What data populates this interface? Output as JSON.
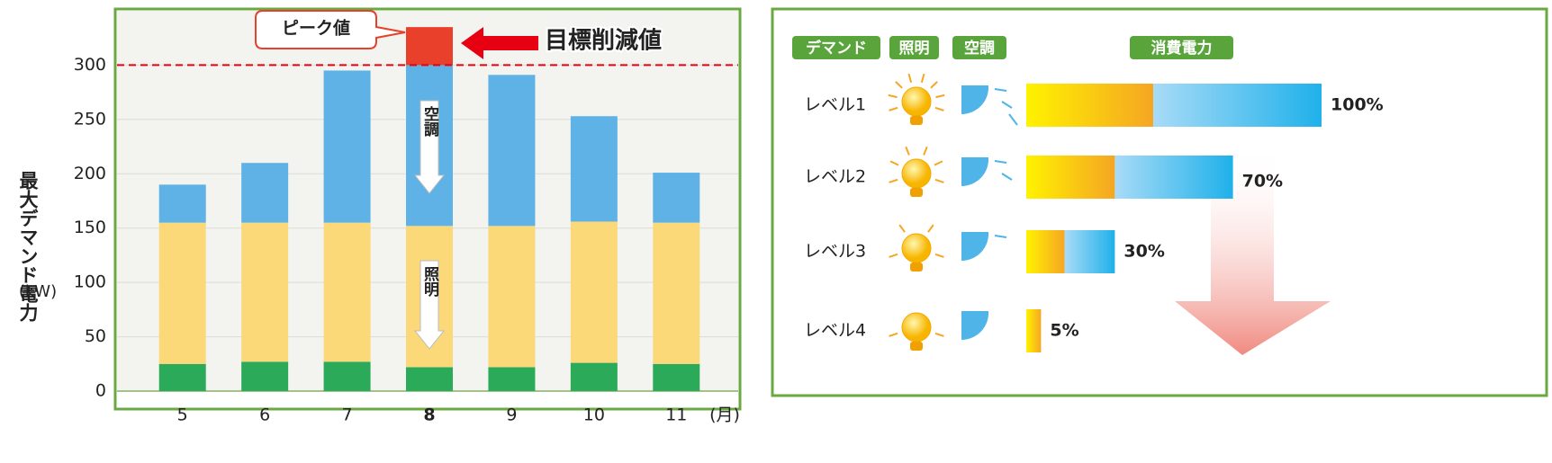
{
  "chart_data": [
    {
      "type": "bar",
      "y_label": "最大デマンド電力",
      "y_unit": "(kW)",
      "x_unit": "(月)",
      "categories": [
        "5",
        "6",
        "7",
        "8",
        "9",
        "10",
        "11"
      ],
      "highlight_category": "8",
      "highlight_color": "#e60012",
      "series": [
        {
          "color": "#2bab5a",
          "values": [
            25,
            27,
            27,
            22,
            22,
            26,
            25
          ]
        },
        {
          "name": "照明",
          "color": "#fbd979",
          "values": [
            130,
            128,
            128,
            130,
            130,
            130,
            130
          ]
        },
        {
          "name": "空調",
          "color": "#5fb2e6",
          "values": [
            35,
            55,
            140,
            148,
            139,
            97,
            46
          ]
        },
        {
          "color": "#e8402a",
          "values": [
            null,
            null,
            null,
            35,
            null,
            null,
            null
          ]
        }
      ],
      "ylim": [
        0,
        350
      ],
      "yticks": [
        0,
        50,
        100,
        150,
        200,
        250,
        300
      ],
      "grid": true,
      "target_line": 300,
      "annotations": {
        "peak": "ピーク値",
        "target": "目標削減値"
      }
    },
    {
      "type": "levels",
      "headers": {
        "demand": "デマンド",
        "lighting": "照明",
        "ac": "空調",
        "consumption": "消費電力"
      },
      "levels": [
        {
          "label": "レベル1",
          "value": 100,
          "value_label": "100%",
          "lighting": 43
        },
        {
          "label": "レベル2",
          "value": 70,
          "value_label": "70%",
          "lighting": 30
        },
        {
          "label": "レベル3",
          "value": 30,
          "value_label": "30%",
          "lighting": 13
        },
        {
          "label": "レベル4",
          "value": 5,
          "value_label": "5%",
          "lighting": 5
        }
      ]
    }
  ]
}
